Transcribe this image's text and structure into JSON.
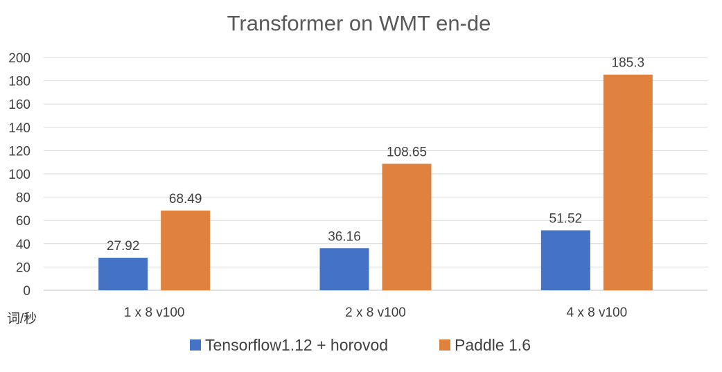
{
  "chart_data": {
    "type": "bar",
    "title": "Transformer on WMT en-de",
    "xlabel": "",
    "ylabel": "词/秒",
    "categories": [
      "1 x 8 v100",
      "2 x 8 v100",
      "4 x 8 v100"
    ],
    "series": [
      {
        "name": "Tensorflow1.12 + horovod",
        "values": [
          27.92,
          36.16,
          51.52
        ],
        "labels": [
          "27.92",
          "36.16",
          "51.52"
        ],
        "color": "#4472C4"
      },
      {
        "name": "Paddle 1.6",
        "values": [
          68.49,
          108.65,
          185.3
        ],
        "labels": [
          "68.49",
          "108.65",
          "185.3"
        ],
        "color": "#E0823D"
      }
    ],
    "ylim": [
      0,
      200
    ],
    "yticks": [
      0,
      20,
      40,
      60,
      80,
      100,
      120,
      140,
      160,
      180,
      200
    ],
    "grid": true,
    "legend_position": "bottom"
  }
}
